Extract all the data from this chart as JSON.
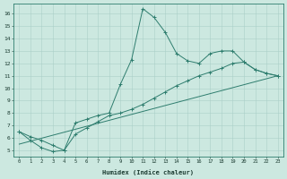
{
  "xlabel": "Humidex (Indice chaleur)",
  "bg_color": "#cce8e0",
  "grid_color": "#aacfc8",
  "line_color": "#2e7d6e",
  "spine_color": "#2e7d6e",
  "xlim": [
    -0.5,
    23.5
  ],
  "ylim": [
    4.5,
    16.8
  ],
  "yticks": [
    5,
    6,
    7,
    8,
    9,
    10,
    11,
    12,
    13,
    14,
    15,
    16
  ],
  "xticks": [
    0,
    1,
    2,
    3,
    4,
    5,
    6,
    7,
    8,
    9,
    10,
    11,
    12,
    13,
    14,
    15,
    16,
    17,
    18,
    19,
    20,
    21,
    22,
    23
  ],
  "line1_x": [
    0,
    1,
    2,
    3,
    4,
    5,
    6,
    7,
    8,
    9,
    10,
    11,
    12,
    13,
    14,
    15,
    16,
    17,
    18,
    19,
    20,
    21,
    22,
    23
  ],
  "line1_y": [
    6.5,
    5.8,
    5.2,
    4.9,
    5.0,
    7.2,
    7.5,
    7.8,
    8.0,
    10.3,
    12.3,
    16.4,
    15.7,
    14.5,
    12.8,
    12.2,
    12.0,
    12.8,
    13.0,
    13.0,
    12.1,
    11.5,
    11.2,
    11.0
  ],
  "line2_x": [
    0,
    1,
    2,
    3,
    4,
    5,
    6,
    7,
    8,
    9,
    10,
    11,
    12,
    13,
    14,
    15,
    16,
    17,
    18,
    19,
    20,
    21,
    22,
    23
  ],
  "line2_y": [
    6.5,
    6.1,
    5.8,
    5.4,
    5.0,
    6.3,
    6.8,
    7.3,
    7.8,
    8.0,
    8.3,
    8.7,
    9.2,
    9.7,
    10.2,
    10.6,
    11.0,
    11.3,
    11.6,
    12.0,
    12.1,
    11.5,
    11.2,
    11.0
  ],
  "line3_x": [
    0,
    23
  ],
  "line3_y": [
    5.5,
    11.0
  ]
}
